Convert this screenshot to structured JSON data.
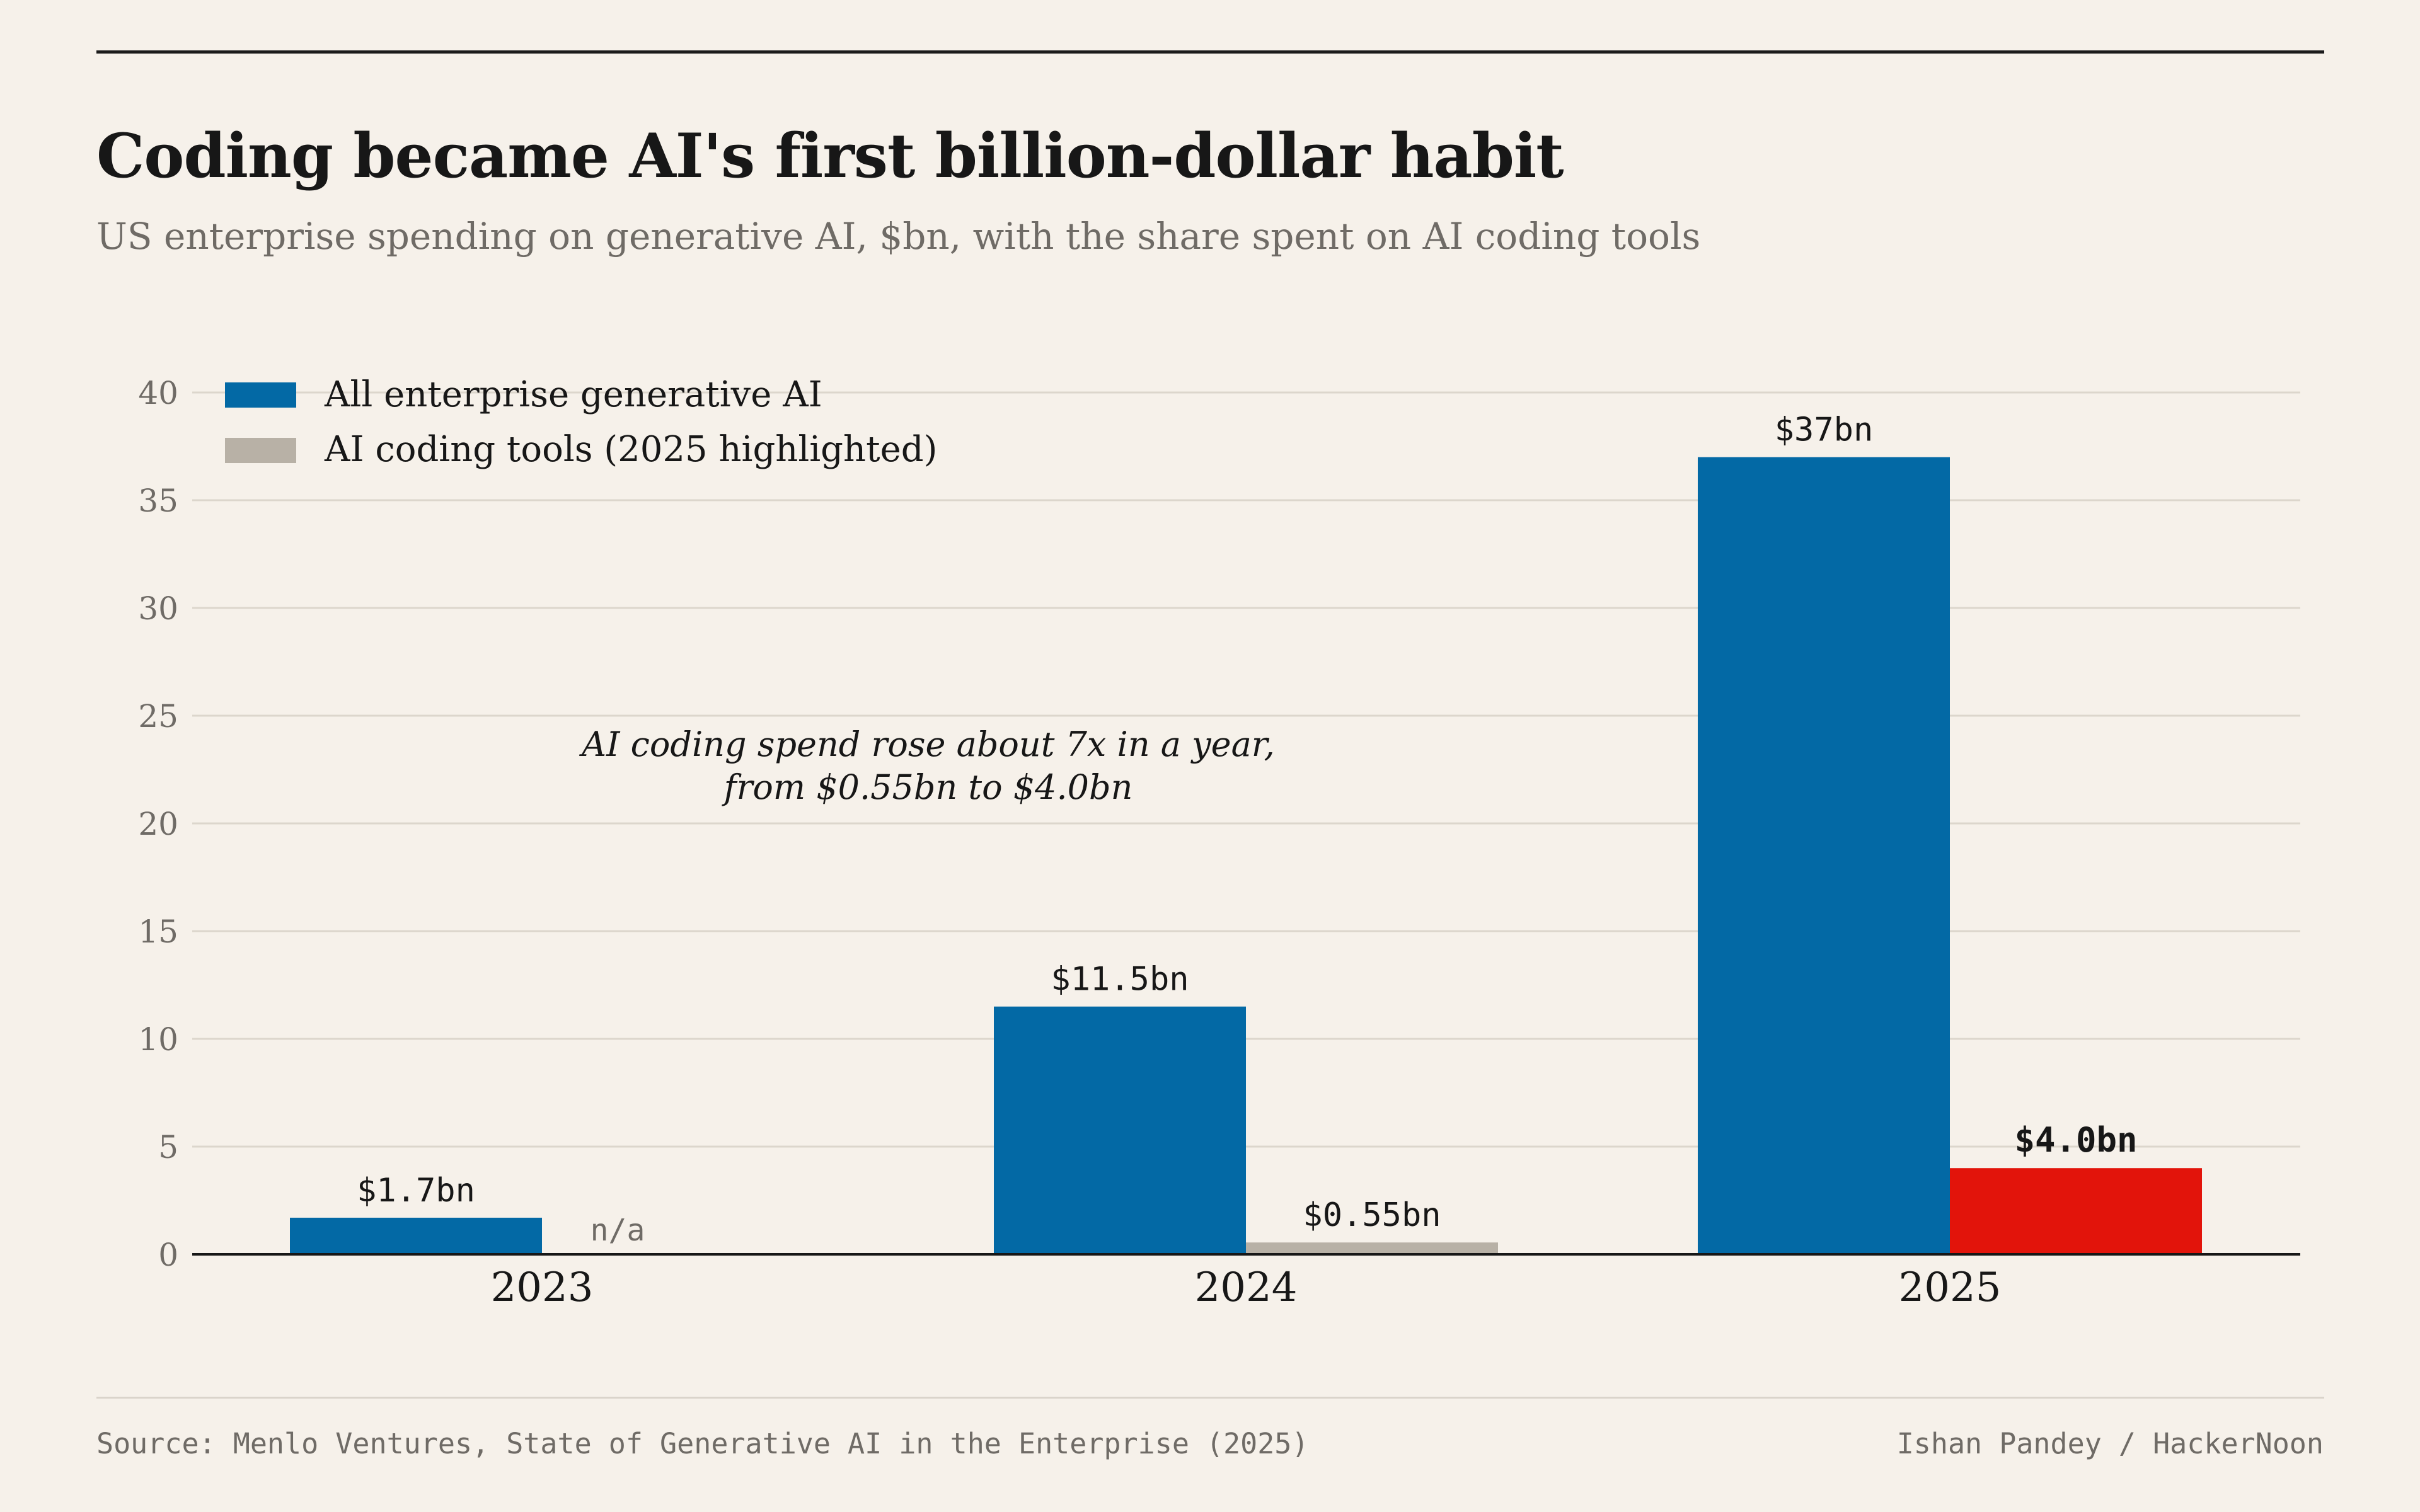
{
  "header": {
    "title": "Coding became AI's first billion-dollar habit",
    "subtitle": "US enterprise spending on generative AI, $bn, with the share spent on AI coding tools"
  },
  "footer": {
    "source": "Source: Menlo Ventures, State of Generative AI in the Enterprise (2025)",
    "credit": "Ishan Pandey / HackerNoon"
  },
  "colors": {
    "background": "#f6f1ea",
    "all_ai": "#0369a5",
    "coding": "#b8b1a6",
    "highlight": "#e2140b",
    "grid": "#dcd6cc",
    "axis": "#171717"
  },
  "chart_data": {
    "type": "bar",
    "categories": [
      "2023",
      "2024",
      "2025"
    ],
    "series": [
      {
        "name": "All enterprise generative AI",
        "values": [
          1.7,
          11.5,
          37
        ],
        "labels": [
          "$1.7bn",
          "$11.5bn",
          "$37bn"
        ]
      },
      {
        "name": "AI coding tools (2025 highlighted)",
        "values": [
          null,
          0.55,
          4.0
        ],
        "labels": [
          "n/a",
          "$0.55bn",
          "$4.0bn"
        ],
        "highlight_index": 2
      }
    ],
    "ylim": [
      0,
      40
    ],
    "yticks": [
      0,
      5,
      10,
      15,
      20,
      25,
      30,
      35,
      40
    ],
    "grid": true,
    "legend_position": "top-left",
    "annotation": {
      "lines": [
        "AI coding spend rose about 7x in a year,",
        "from $0.55bn to $4.0bn"
      ]
    }
  }
}
